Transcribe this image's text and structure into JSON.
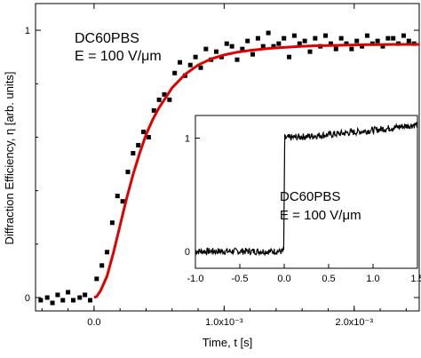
{
  "chart_data": [
    {
      "type": "scatter",
      "xlabel": "Time, t [s]",
      "ylabel": "Diffraction Efficiency, η [arb. units]",
      "xlim": [
        -0.00045,
        0.0025
      ],
      "ylim": [
        -0.05,
        1.1
      ],
      "x_ticks": [
        {
          "value": 0.0,
          "label": "0.0"
        },
        {
          "value": 0.001,
          "label": "1.0x10⁻³"
        },
        {
          "value": 0.002,
          "label": "2.0x10⁻³"
        }
      ],
      "y_ticks": [
        {
          "value": 0,
          "label": "0"
        },
        {
          "value": 1,
          "label": "1"
        }
      ],
      "annotations": [
        "DC60PBS",
        "E = 100 V/μm"
      ],
      "series": [
        {
          "kind": "points",
          "marker": "square",
          "color": "#000000",
          "x": [
            -0.00041,
            -0.00036,
            -0.00032,
            -0.00028,
            -0.00024,
            -0.0002,
            -0.00016,
            -0.00011,
            -7e-05,
            -3e-05,
            2e-05,
            6e-05,
            0.0001,
            0.00014,
            0.00018,
            0.00022,
            0.00026,
            0.0003,
            0.00034,
            0.00038,
            0.00042,
            0.00046,
            0.0005,
            0.00054,
            0.00058,
            0.00062,
            0.00066,
            0.0007,
            0.00074,
            0.00078,
            0.00082,
            0.00086,
            0.0009,
            0.00094,
            0.00098,
            0.00102,
            0.00106,
            0.0011,
            0.00114,
            0.00118,
            0.00122,
            0.00126,
            0.0013,
            0.00134,
            0.00138,
            0.00142,
            0.00146,
            0.0015,
            0.00154,
            0.00158,
            0.00162,
            0.00166,
            0.0017,
            0.00174,
            0.00178,
            0.00182,
            0.00186,
            0.0019,
            0.00194,
            0.00198,
            0.00202,
            0.00206,
            0.0021,
            0.00214,
            0.00218,
            0.00222,
            0.00226,
            0.0023,
            0.00234,
            0.00238,
            0.00242,
            0.00246
          ],
          "y": [
            -0.01,
            0.0,
            -0.02,
            0.01,
            -0.01,
            0.02,
            -0.01,
            0.0,
            0.01,
            -0.01,
            0.07,
            0.12,
            0.17,
            0.28,
            0.38,
            0.36,
            0.47,
            0.54,
            0.57,
            0.62,
            0.6,
            0.7,
            0.74,
            0.76,
            0.74,
            0.84,
            0.88,
            0.83,
            0.87,
            0.9,
            0.86,
            0.93,
            0.89,
            0.92,
            0.9,
            0.95,
            0.94,
            0.89,
            0.93,
            0.96,
            0.91,
            0.97,
            0.94,
            0.99,
            0.94,
            0.95,
            0.97,
            0.9,
            0.98,
            0.95,
            0.96,
            0.92,
            0.97,
            0.94,
            0.98,
            0.95,
            0.93,
            0.97,
            0.95,
            0.93,
            0.96,
            0.94,
            0.98,
            0.95,
            0.96,
            0.94,
            0.97,
            0.97,
            0.95,
            0.98,
            0.96,
            0.95
          ]
        },
        {
          "kind": "line",
          "color": "#e00000",
          "x": [
            0.0,
            2e-05,
            5e-05,
            0.0001,
            0.00015,
            0.0002,
            0.00025,
            0.0003,
            0.00035,
            0.0004,
            0.00045,
            0.0005,
            0.0006,
            0.0007,
            0.0008,
            0.0009,
            0.001,
            0.0011,
            0.0012,
            0.0013,
            0.0014,
            0.0015,
            0.0016,
            0.0017,
            0.0018,
            0.0019,
            0.002,
            0.0021,
            0.0022,
            0.0023,
            0.0024,
            0.0025
          ],
          "y": [
            0.0,
            0.004,
            0.025,
            0.08,
            0.17,
            0.27,
            0.37,
            0.46,
            0.54,
            0.61,
            0.665,
            0.71,
            0.785,
            0.835,
            0.87,
            0.893,
            0.908,
            0.918,
            0.925,
            0.93,
            0.934,
            0.937,
            0.94,
            0.942,
            0.943,
            0.944,
            0.945,
            0.946,
            0.946,
            0.947,
            0.947,
            0.947
          ]
        }
      ]
    },
    {
      "type": "line",
      "xlim": [
        -1.0,
        1.5
      ],
      "ylim": [
        -0.15,
        1.2
      ],
      "x_ticks": [
        {
          "value": -1.0,
          "label": "-1.0"
        },
        {
          "value": -0.5,
          "label": "-0.5"
        },
        {
          "value": 0.0,
          "label": "0.0"
        },
        {
          "value": 0.5,
          "label": "0.5"
        },
        {
          "value": 1.0,
          "label": "1.0"
        },
        {
          "value": 1.5,
          "label": "1.5"
        }
      ],
      "y_ticks": [
        {
          "value": 0,
          "label": "0"
        },
        {
          "value": 1,
          "label": "1"
        }
      ],
      "annotations": [
        "DC60PBS",
        "E = 100 V/μm"
      ],
      "series": [
        {
          "kind": "line",
          "color": "#000000",
          "x": [
            -1.0,
            -0.5,
            -0.001,
            0.001,
            0.5,
            1.0,
            1.5
          ],
          "y": [
            0.0,
            0.0,
            0.0,
            1.0,
            1.03,
            1.07,
            1.12
          ]
        }
      ]
    }
  ]
}
